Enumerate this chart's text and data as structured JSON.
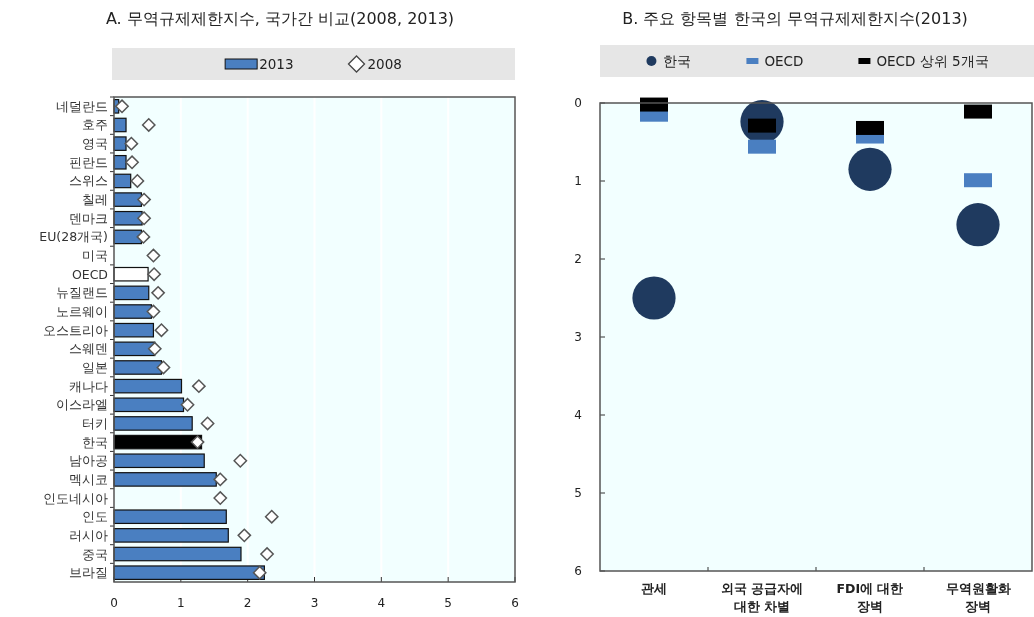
{
  "chart_data": [
    {
      "type": "bar",
      "orientation": "horizontal",
      "title": "A. 무역규제제한지수, 국가간 비교(2008, 2013)",
      "categories": [
        "네덜란드",
        "호주",
        "영국",
        "핀란드",
        "스위스",
        "칠레",
        "덴마크",
        "EU(28개국)",
        "미국",
        "OECD",
        "뉴질랜드",
        "노르웨이",
        "오스트리아",
        "스웨덴",
        "일본",
        "캐나다",
        "이스라엘",
        "터키",
        "한국",
        "남아공",
        "멕시코",
        "인도네시아",
        "인도",
        "러시아",
        "중국",
        "브라질"
      ],
      "series": [
        {
          "name": "2013",
          "color": "#4a7fc1",
          "colors": [
            "#4a7fc1",
            "#4a7fc1",
            "#4a7fc1",
            "#4a7fc1",
            "#4a7fc1",
            "#4a7fc1",
            "#4a7fc1",
            "#4a7fc1",
            "#4a7fc1",
            "#ffffff",
            "#4a7fc1",
            "#4a7fc1",
            "#4a7fc1",
            "#4a7fc1",
            "#4a7fc1",
            "#4a7fc1",
            "#4a7fc1",
            "#4a7fc1",
            "#000000",
            "#4a7fc1",
            "#4a7fc1",
            "#4a7fc1",
            "#4a7fc1",
            "#4a7fc1",
            "#4a7fc1",
            "#4a7fc1"
          ],
          "values": [
            0.07,
            0.18,
            0.18,
            0.18,
            0.25,
            0.41,
            0.42,
            0.41,
            null,
            0.51,
            0.52,
            0.56,
            0.59,
            0.61,
            0.71,
            1.01,
            1.04,
            1.17,
            1.31,
            1.35,
            1.53,
            null,
            1.68,
            1.71,
            1.9,
            2.25
          ]
        },
        {
          "name": "2008",
          "type": "scatter",
          "marker": "diamond",
          "color": "#ffffff",
          "values": [
            0.12,
            0.52,
            0.26,
            0.27,
            0.35,
            0.45,
            0.45,
            0.44,
            0.59,
            0.6,
            0.66,
            0.59,
            0.71,
            0.61,
            0.74,
            1.27,
            1.1,
            1.4,
            1.25,
            1.89,
            1.59,
            1.59,
            2.36,
            1.95,
            2.29,
            2.18
          ]
        }
      ],
      "xlim": [
        0,
        6
      ],
      "xticks": [
        0,
        1,
        2,
        3,
        4,
        5,
        6
      ],
      "grid": "x",
      "legend": "top"
    },
    {
      "type": "scatter",
      "title": "B. 주요 항목별 한국의 무역규제제한지수(2013)",
      "categories": [
        "관세",
        "외국 공급자에\n대한 차별",
        "FDI에 대한\n장벽",
        "무역원활화\n장벽"
      ],
      "series": [
        {
          "name": "한국",
          "marker": "circle",
          "color": "#1f3a5f",
          "values": [
            2.5,
            0.24,
            0.85,
            1.56
          ]
        },
        {
          "name": "OECD",
          "marker": "square",
          "color": "#4a7fc1",
          "values": [
            0.15,
            0.56,
            0.43,
            0.99
          ]
        },
        {
          "name": "OECD 상위 5개국",
          "marker": "square",
          "color": "#000000",
          "values": [
            0.02,
            0.29,
            0.32,
            0.11
          ]
        }
      ],
      "ylim": [
        6,
        0
      ],
      "yticks": [
        0,
        1,
        2,
        3,
        4,
        5,
        6
      ],
      "legend": "top"
    }
  ]
}
